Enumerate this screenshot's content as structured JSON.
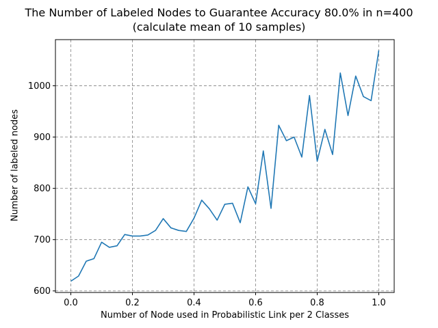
{
  "chart_data": {
    "type": "line",
    "title": "The Number of Labeled Nodes to Guarantee Accuracy 80.0% in n=400",
    "subtitle": "(calculate mean of 10 samples)",
    "xlabel": "Number of Node used in Probabilistic Link per 2 Classes",
    "ylabel": "Number of labeled nodes",
    "xlim": [
      -0.05,
      1.05
    ],
    "ylim": [
      597,
      1090
    ],
    "xticks": [
      0.0,
      0.2,
      0.4,
      0.6,
      0.8,
      1.0
    ],
    "xtick_labels": [
      "0.0",
      "0.2",
      "0.4",
      "0.6",
      "0.8",
      "1.0"
    ],
    "yticks": [
      600,
      700,
      800,
      900,
      1000
    ],
    "ytick_labels": [
      "600",
      "700",
      "800",
      "900",
      "1000"
    ],
    "grid": true,
    "legend": "none",
    "line_color": "#1f77b4",
    "grid_color": "#808080",
    "series": [
      {
        "x": [
          0.0,
          0.025,
          0.05,
          0.075,
          0.1,
          0.125,
          0.15,
          0.175,
          0.2,
          0.225,
          0.25,
          0.275,
          0.3,
          0.325,
          0.35,
          0.375,
          0.4,
          0.425,
          0.45,
          0.475,
          0.5,
          0.525,
          0.55,
          0.575,
          0.6,
          0.625,
          0.65,
          0.675,
          0.7,
          0.725,
          0.75,
          0.775,
          0.8,
          0.825,
          0.85,
          0.875,
          0.9,
          0.925,
          0.95,
          0.975,
          1.0
        ],
        "values": [
          619,
          629,
          658,
          663,
          695,
          685,
          688,
          710,
          707,
          707,
          709,
          718,
          741,
          723,
          718,
          716,
          742,
          777,
          760,
          738,
          769,
          771,
          733,
          803,
          770,
          873,
          761,
          923,
          893,
          900,
          861,
          981,
          853,
          915,
          866,
          1025,
          942,
          1019,
          979,
          971,
          1069
        ]
      }
    ]
  }
}
